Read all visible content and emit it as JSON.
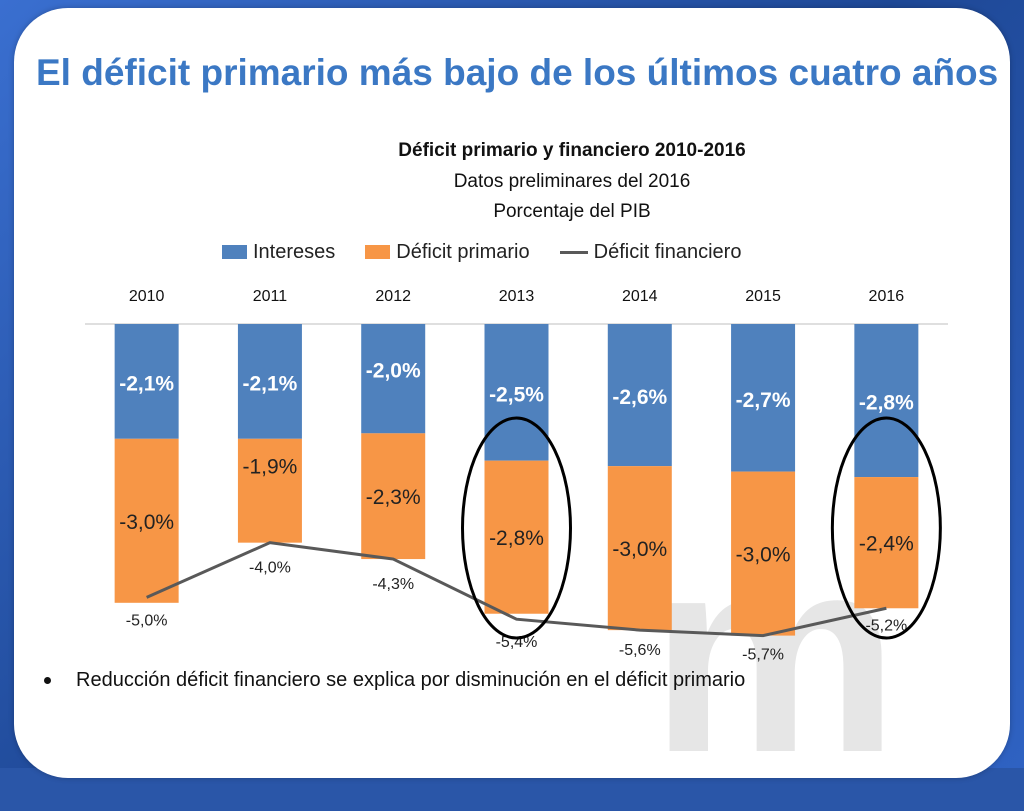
{
  "slide": {
    "title": "El déficit primario más bajo de los últimos cuatro años",
    "bullet": "Reducción déficit financiero se explica por disminución  en el déficit primario",
    "watermark": "m"
  },
  "colors": {
    "intereses": "#4f81bd",
    "primario": "#f79646",
    "financiero": "#595959",
    "highlight": "#000000"
  },
  "chart_data": {
    "type": "bar",
    "stacked": true,
    "title": "Déficit primario y financiero 2010-2016",
    "subtitle1": "Datos preliminares del 2016",
    "subtitle2": "Porcentaje del PIB",
    "legend": [
      "Intereses",
      "Déficit primario",
      "Déficit financiero"
    ],
    "legend_position": "top",
    "categories": [
      "2010",
      "2011",
      "2012",
      "2013",
      "2014",
      "2015",
      "2016"
    ],
    "ylim": [
      -6,
      0
    ],
    "series": [
      {
        "name": "Intereses",
        "kind": "bar",
        "values": [
          -2.1,
          -2.1,
          -2.0,
          -2.5,
          -2.6,
          -2.7,
          -2.8
        ],
        "labels": [
          "-2,1%",
          "-2,1%",
          "-2,0%",
          "-2,5%",
          "-2,6%",
          "-2,7%",
          "-2,8%"
        ]
      },
      {
        "name": "Déficit primario",
        "kind": "bar",
        "values": [
          -3.0,
          -1.9,
          -2.3,
          -2.8,
          -3.0,
          -3.0,
          -2.4
        ],
        "labels": [
          "-3,0%",
          "-1,9%",
          "-2,3%",
          "-2,8%",
          "-3,0%",
          "-3,0%",
          "-2,4%"
        ]
      },
      {
        "name": "Déficit financiero",
        "kind": "line",
        "values": [
          -5.0,
          -4.0,
          -4.3,
          -5.4,
          -5.6,
          -5.7,
          -5.2
        ],
        "labels": [
          "-5,0%",
          "-4,0%",
          "-4,3%",
          "-5,4%",
          "-5,6%",
          "-5,7%",
          "-5,2%"
        ]
      }
    ],
    "highlighted_categories": [
      "2013",
      "2016"
    ]
  }
}
